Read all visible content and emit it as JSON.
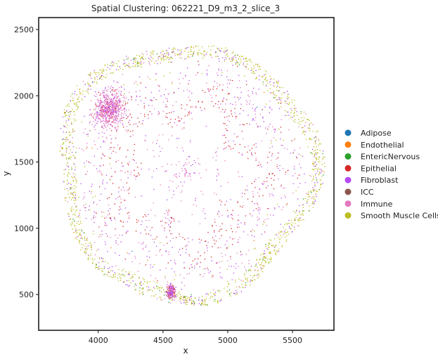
{
  "chart_data": {
    "type": "scatter",
    "title": "Spatial Clustering: 062221_D9_m3_2_slice_3",
    "xlabel": "x",
    "ylabel": "y",
    "xlim": [
      3540,
      5820
    ],
    "ylim": [
      230,
      2590
    ],
    "xticks": [
      4000,
      4500,
      5000,
      5500
    ],
    "yticks": [
      500,
      1000,
      1500,
      2000,
      2500
    ],
    "grid": false,
    "legend_position": "right",
    "tissue_shape": {
      "center": [
        4680,
        1430
      ],
      "outer_radius": 1010,
      "lumen_radius": 520
    },
    "series": [
      {
        "name": "Adipose",
        "color": "#1f77b4"
      },
      {
        "name": "Endothelial",
        "color": "#ff7f0e"
      },
      {
        "name": "EntericNervous",
        "color": "#2ca02c"
      },
      {
        "name": "Epithelial",
        "color": "#d62728"
      },
      {
        "name": "Fibroblast",
        "color": "#b44bf0"
      },
      {
        "name": "ICC",
        "color": "#8c564b"
      },
      {
        "name": "Immune",
        "color": "#e377c2"
      },
      {
        "name": "Smooth Muscle Cells",
        "color": "#bcbd22"
      }
    ]
  }
}
